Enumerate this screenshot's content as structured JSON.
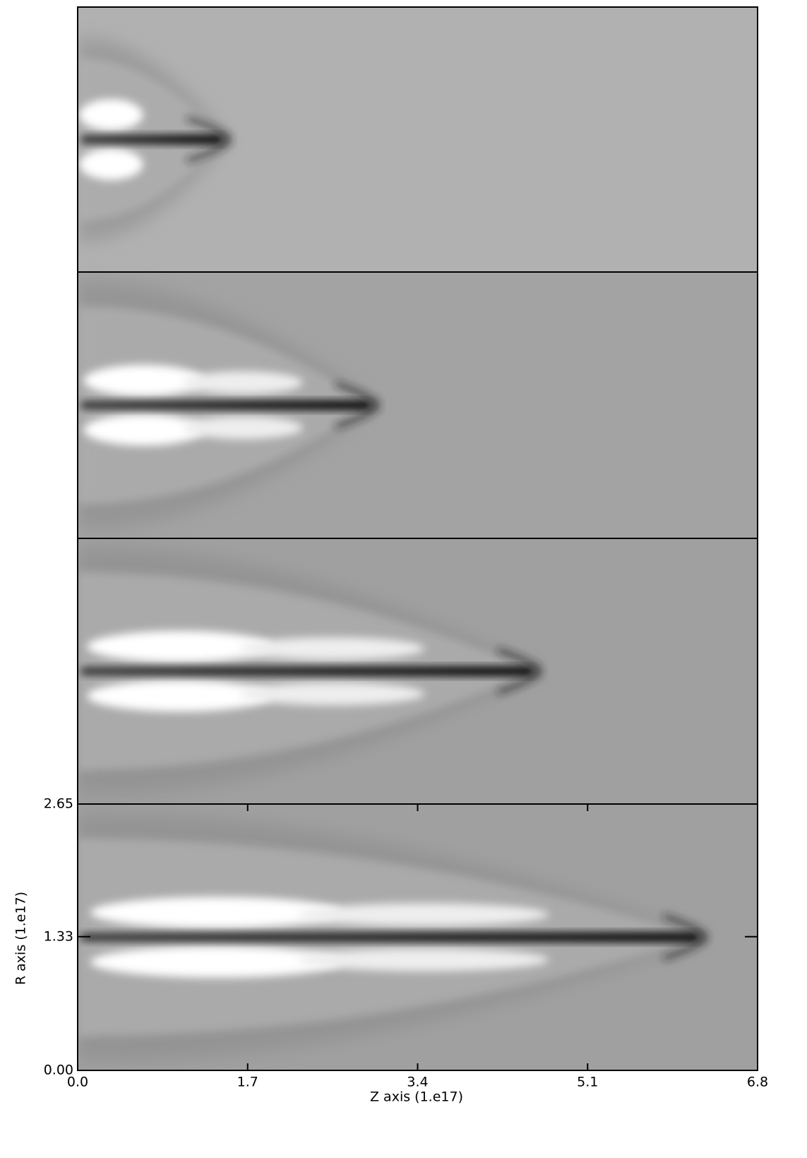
{
  "chart_data": {
    "type": "image",
    "x_label": "Z axis (1.e17)",
    "y_label": "R axis (1.e17)",
    "xlim": [
      0,
      6.8
    ],
    "xticks": [
      {
        "value": 0,
        "label": "0.0"
      },
      1.7,
      3.4,
      5.1,
      6.8
    ],
    "ylim": [
      0,
      2.65
    ],
    "yticks": [
      {
        "value": 0,
        "label": "0.00"
      },
      1.33,
      2.65
    ]
  }
}
